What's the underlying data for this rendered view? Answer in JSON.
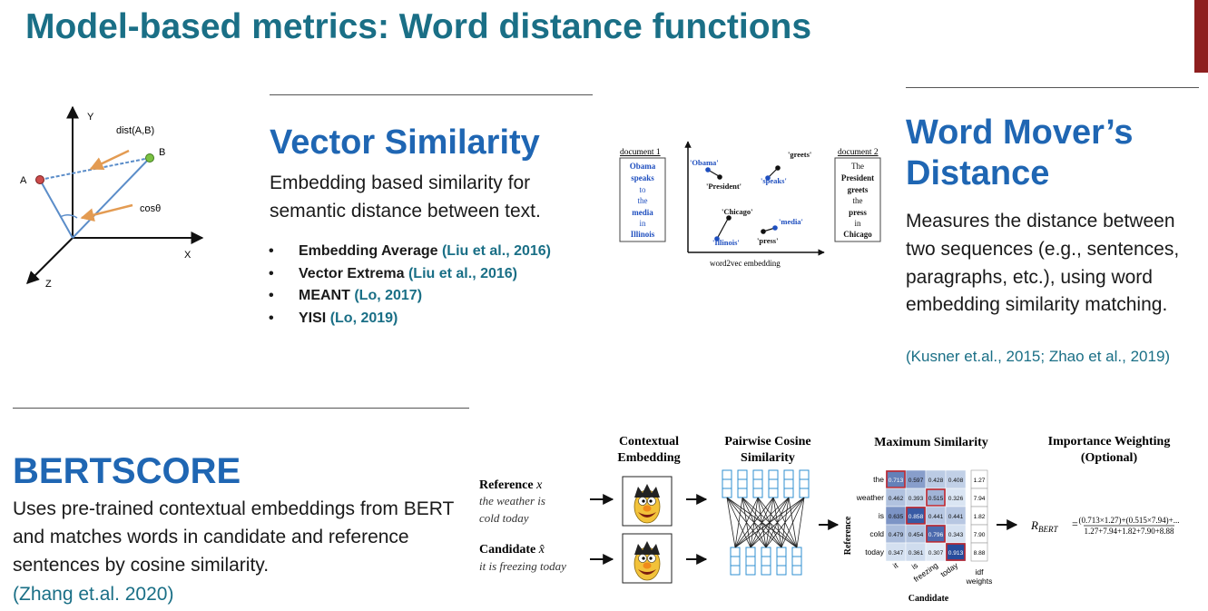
{
  "title": "Model-based metrics: Word distance functions",
  "vector_diagram": {
    "axis_y": "Y",
    "axis_x": "X",
    "axis_z": "Z",
    "point_a": "A",
    "point_b": "B",
    "dist_label": "dist(A,B)",
    "cos_label": "cosθ"
  },
  "vector_similarity": {
    "heading": "Vector Similarity",
    "description": "Embedding based similarity for semantic distance between text.",
    "items": [
      {
        "name": "Embedding Average",
        "cite": "(Liu et al., 2016)"
      },
      {
        "name": "Vector Extrema",
        "cite": "(Liu et al., 2016)"
      },
      {
        "name": "MEANT",
        "cite": "(Lo, 2017)"
      },
      {
        "name": "YISI",
        "cite": "(Lo, 2019)"
      }
    ]
  },
  "wmd_figure": {
    "doc1_label": "document 1",
    "doc2_label": "document 2",
    "doc1_words": [
      "Obama",
      "speaks",
      "to",
      "the",
      "media",
      "in",
      "Illinois"
    ],
    "doc2_words": [
      "The",
      "President",
      "greets",
      "the",
      "press",
      "in",
      "Chicago"
    ],
    "plot_words": [
      "'Obama'",
      "'President'",
      "'greets'",
      "'speaks'",
      "'Chicago'",
      "'media'",
      "'Illinois'",
      "'press'"
    ],
    "axis_caption": "word2vec embedding"
  },
  "wmd": {
    "heading_line1": "Word Mover’s",
    "heading_line2": "Distance",
    "description": "Measures the distance between two sequences (e.g., sentences, paragraphs, etc.), using word embedding similarity matching.",
    "cite": "(Kusner et.al., 2015; Zhao et al., 2019)"
  },
  "bertscore": {
    "heading": "BERTSCORE",
    "description": "Uses pre-trained contextual embeddings from BERT and matches words in candidate and reference sentences by cosine similarity.",
    "cite": "(Zhang et.al. 2020)"
  },
  "bert_figure": {
    "reference_label": "Reference",
    "reference_symbol": "x",
    "reference_text_1": "the weather is",
    "reference_text_2": "cold today",
    "candidate_label": "Candidate",
    "candidate_symbol": "x̂",
    "candidate_text": "it is freezing today",
    "stage1_line1": "Contextual",
    "stage1_line2": "Embedding",
    "stage2_line1": "Pairwise Cosine",
    "stage2_line2": "Similarity",
    "stage3": "Maximum Similarity",
    "stage4_line1": "Importance Weighting",
    "stage4_line2": "(Optional)",
    "matrix_rows": [
      "the",
      "weather",
      "is",
      "cold",
      "today"
    ],
    "matrix_cols": [
      "it",
      "is",
      "freezing",
      "today"
    ],
    "matrix_values": [
      [
        "0.713",
        "0.597",
        "0.428",
        "0.408"
      ],
      [
        "0.462",
        "0.393",
        "0.515",
        "0.326"
      ],
      [
        "0.635",
        "0.858",
        "0.441",
        "0.441"
      ],
      [
        "0.479",
        "0.454",
        "0.796",
        "0.343"
      ],
      [
        "0.347",
        "0.361",
        "0.307",
        "0.913"
      ]
    ],
    "idf_weights": [
      "1.27",
      "7.94",
      "1.82",
      "7.90",
      "8.88"
    ],
    "idf_label_1": "idf",
    "idf_label_2": "weights",
    "row_axis_label": "Reference",
    "col_axis_label": "Candidate",
    "formula_lhs": "R",
    "formula_sub": "BERT",
    "formula_num": "(0.713×1.27)+(0.515×7.94)+...",
    "formula_den": "1.27+7.94+1.82+7.90+8.88"
  }
}
